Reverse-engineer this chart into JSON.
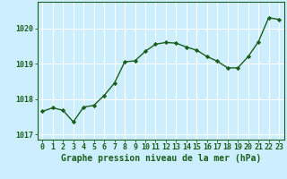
{
  "x": [
    0,
    1,
    2,
    3,
    4,
    5,
    6,
    7,
    8,
    9,
    10,
    11,
    12,
    13,
    14,
    15,
    16,
    17,
    18,
    19,
    20,
    21,
    22,
    23
  ],
  "y": [
    1017.65,
    1017.75,
    1017.68,
    1017.35,
    1017.77,
    1017.82,
    1018.1,
    1018.45,
    1019.05,
    1019.08,
    1019.35,
    1019.55,
    1019.6,
    1019.58,
    1019.47,
    1019.38,
    1019.2,
    1019.07,
    1018.88,
    1018.88,
    1019.2,
    1019.62,
    1020.3,
    1020.25
  ],
  "line_color": "#1a5e1a",
  "marker": "D",
  "marker_size": 2.2,
  "linewidth": 1.0,
  "bg_plot": "#cceeff",
  "bg_fig": "#cceeff",
  "xlabel": "Graphe pression niveau de la mer (hPa)",
  "xlabel_fontsize": 7,
  "xlabel_color": "#1a5e1a",
  "yticks": [
    1017,
    1018,
    1019,
    1020
  ],
  "ylim": [
    1016.85,
    1020.75
  ],
  "xlim": [
    -0.5,
    23.5
  ],
  "grid_color": "#ffffff",
  "tick_color": "#1a5e1a",
  "tick_fontsize": 6,
  "spine_color": "#1a5e1a"
}
